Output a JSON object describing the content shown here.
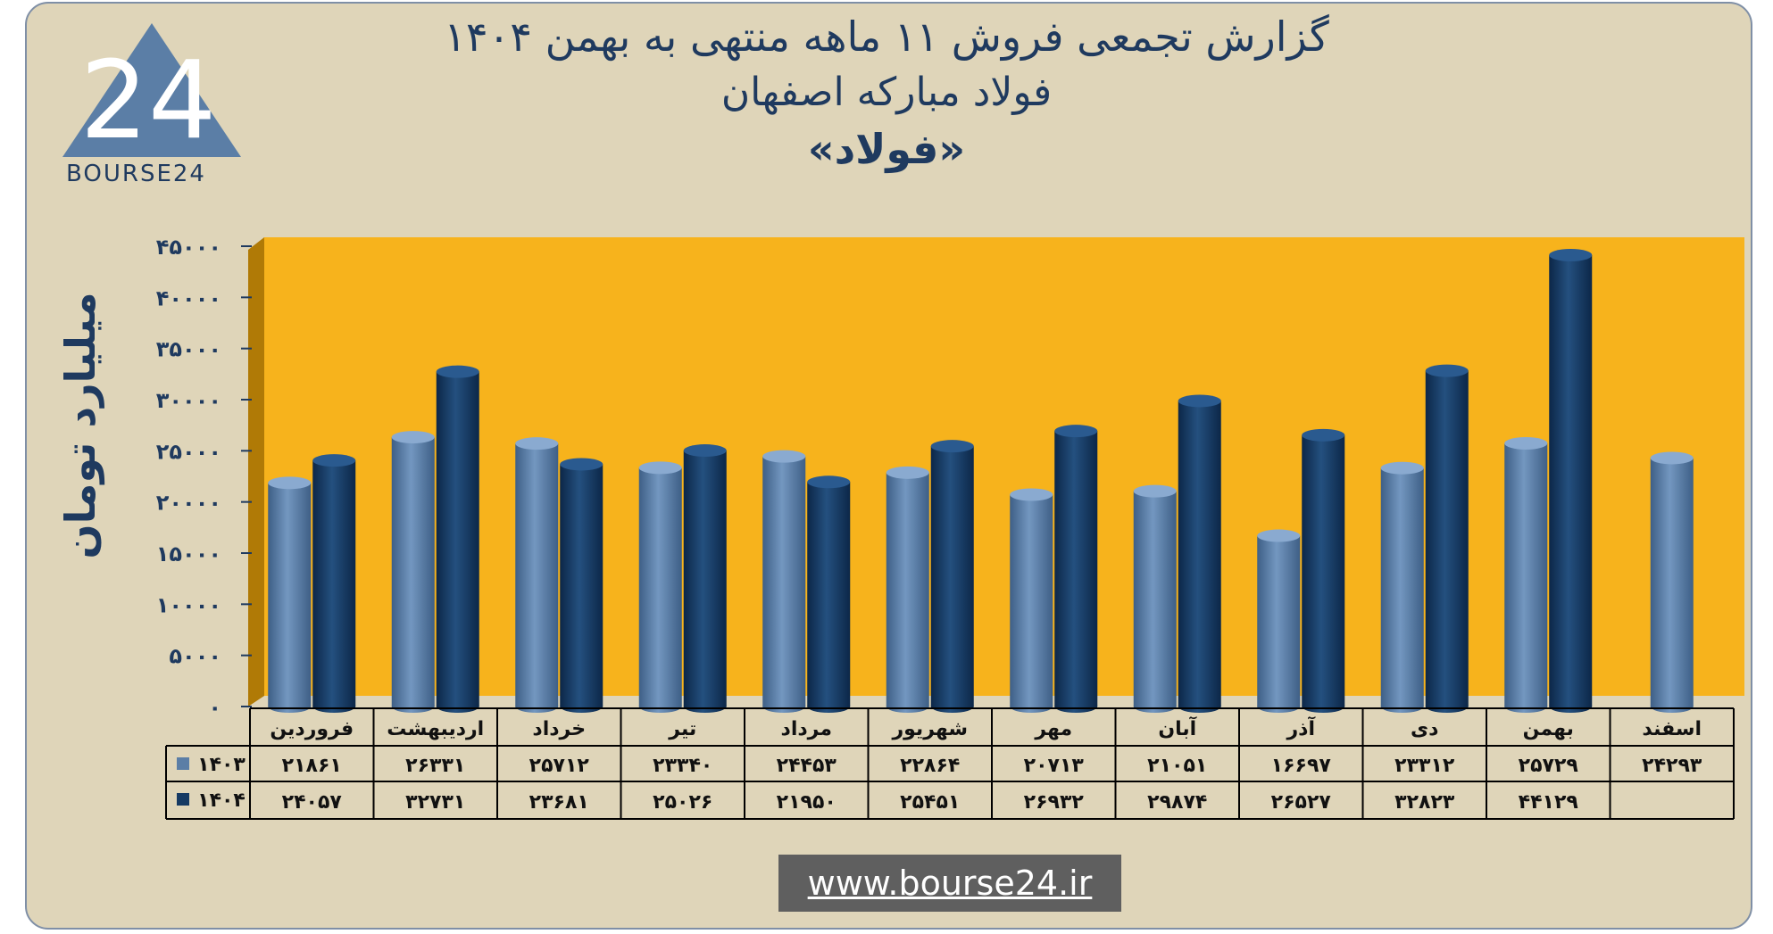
{
  "title": {
    "line1": "گزارش تجمعی فروش ۱۱ ماهه منتهی به بهمن ۱۴۰۴",
    "line2": "فولاد مبارکه اصفهان",
    "line3": "«فولاد»"
  },
  "logo": {
    "text": "BOURSE24",
    "mark": "24"
  },
  "website": "www.bourse24.ir",
  "colors": {
    "background": "#dfd5b9",
    "plot": "#f7b31c",
    "series_1403": "#5b7ea6",
    "series_1404": "#163a63",
    "text": "#1f3a5f"
  },
  "chart_data": {
    "type": "bar",
    "ylabel": "میلیارد تومان",
    "ylim": [
      0,
      45000
    ],
    "y_ticks": [
      "۰",
      "۵۰۰۰",
      "۱۰۰۰۰",
      "۱۵۰۰۰",
      "۲۰۰۰۰",
      "۲۵۰۰۰",
      "۳۰۰۰۰",
      "۳۵۰۰۰",
      "۴۰۰۰۰",
      "۴۵۰۰۰"
    ],
    "y_tick_values": [
      0,
      5000,
      10000,
      15000,
      20000,
      25000,
      30000,
      35000,
      40000,
      45000
    ],
    "categories": [
      "فروردین",
      "اردیبهشت",
      "خرداد",
      "تیر",
      "مرداد",
      "شهریور",
      "مهر",
      "آبان",
      "آذر",
      "دی",
      "بهمن",
      "اسفند"
    ],
    "series": [
      {
        "name": "۱۴۰۳",
        "color": "#5b7ea6",
        "values": [
          21861,
          26331,
          25712,
          23340,
          24453,
          22864,
          20713,
          21051,
          16697,
          23312,
          25729,
          24293
        ],
        "labels": [
          "۲۱۸۶۱",
          "۲۶۳۳۱",
          "۲۵۷۱۲",
          "۲۳۳۴۰",
          "۲۴۴۵۳",
          "۲۲۸۶۴",
          "۲۰۷۱۳",
          "۲۱۰۵۱",
          "۱۶۶۹۷",
          "۲۳۳۱۲",
          "۲۵۷۲۹",
          "۲۴۲۹۳"
        ]
      },
      {
        "name": "۱۴۰۴",
        "color": "#163a63",
        "values": [
          24057,
          32731,
          23681,
          25026,
          21950,
          25451,
          26932,
          29874,
          26527,
          32823,
          44129,
          null
        ],
        "labels": [
          "۲۴۰۵۷",
          "۳۲۷۳۱",
          "۲۳۶۸۱",
          "۲۵۰۲۶",
          "۲۱۹۵۰",
          "۲۵۴۵۱",
          "۲۶۹۳۲",
          "۲۹۸۷۴",
          "۲۶۵۲۷",
          "۳۲۸۲۳",
          "۴۴۱۲۹",
          ""
        ]
      }
    ]
  }
}
